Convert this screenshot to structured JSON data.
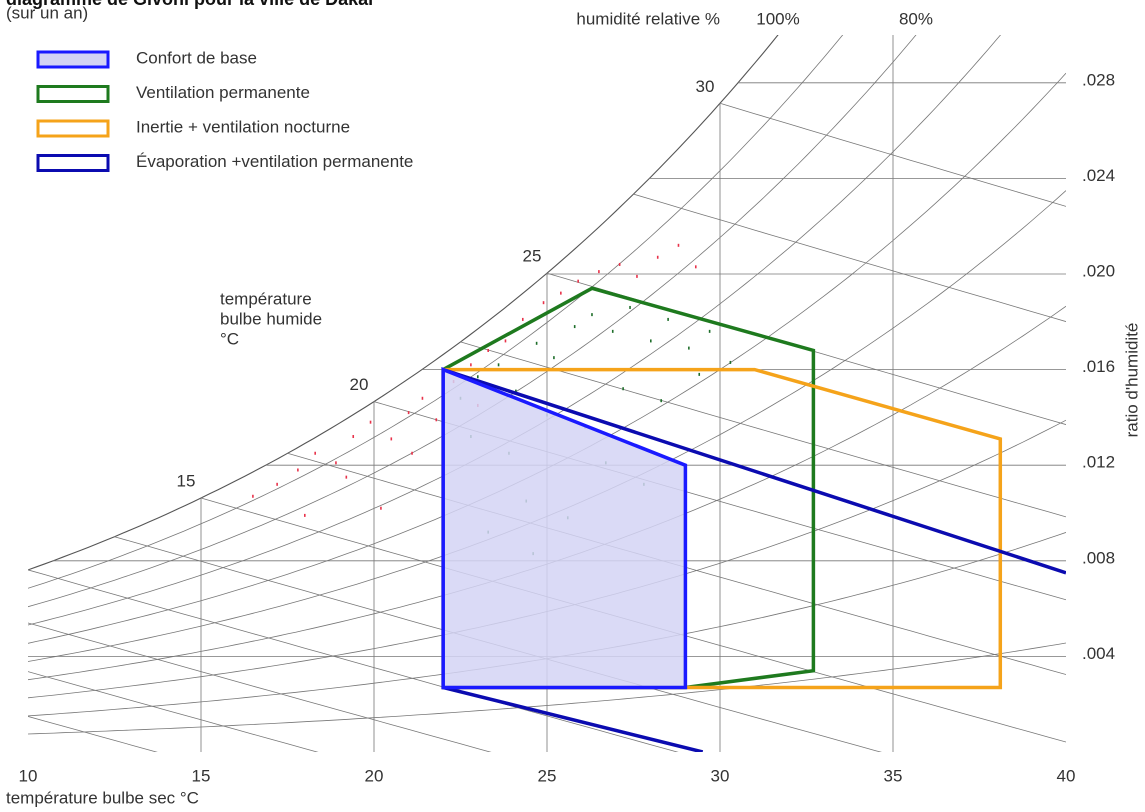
{
  "chart_data": {
    "type": "psychrometric",
    "title": "diagramme de Givoni pour la ville de Dakar",
    "subtitle": "(sur un an)",
    "xlabel": "température bulbe sec °C",
    "ylabel": "ratio d'humidité",
    "xlim": [
      10,
      40
    ],
    "xticks": [
      10,
      15,
      20,
      25,
      30,
      35,
      40
    ],
    "ylim": [
      0,
      0.03
    ],
    "yticks": [
      {
        "value": 0.004,
        "label": ".004"
      },
      {
        "value": 0.008,
        "label": ".008"
      },
      {
        "value": 0.012,
        "label": ".012"
      },
      {
        "value": 0.016,
        "label": ".016"
      },
      {
        "value": 0.02,
        "label": ".020"
      },
      {
        "value": 0.024,
        "label": ".024"
      },
      {
        "value": 0.028,
        "label": ".028"
      }
    ],
    "rh_label": "humidité relative %",
    "rh_curves": [
      10,
      20,
      30,
      40,
      50,
      60,
      70,
      80,
      90,
      100
    ],
    "rh_ticks": [
      {
        "value": 100,
        "label": "100%"
      },
      {
        "value": 80,
        "label": "80%"
      }
    ],
    "wb_label": [
      "température",
      "bulbe humide",
      "°C"
    ],
    "wb_lines": [
      2.5,
      5,
      7.5,
      10,
      12.5,
      15,
      17.5,
      20,
      22.5,
      25,
      27.5,
      30
    ],
    "wb_ticks": [
      15,
      20,
      25,
      30
    ],
    "zones": [
      {
        "name": "Ventilation permanente",
        "color": "#1e7a1e",
        "closed": true,
        "x": [
          22,
          22,
          26.3,
          32.7,
          32.7,
          29
        ],
        "y": [
          0.0027,
          0.016,
          0.0194,
          0.0168,
          0.0034,
          0.0027
        ]
      },
      {
        "name": "Inertie + ventilation nocturne",
        "color": "#f5a31a",
        "closed": true,
        "x": [
          22,
          22,
          31,
          38.1,
          38.1,
          29
        ],
        "y": [
          0.0027,
          0.016,
          0.016,
          0.0131,
          0.0027,
          0.0027
        ]
      },
      {
        "name": "Évaporation +ventilation permanente",
        "color": "#0b0bb0",
        "closed": false,
        "x": [
          40,
          22,
          22,
          29.5
        ],
        "y": [
          0.0075,
          0.016,
          0.0027,
          0
        ]
      },
      {
        "name": "Confort de base",
        "color": "#1a1aff",
        "fill": "#d4d4f4",
        "closed": true,
        "x": [
          22,
          22,
          29,
          29
        ],
        "y": [
          0.0027,
          0.016,
          0.012,
          0.0027
        ]
      }
    ],
    "legend_order": [
      3,
      0,
      1,
      2
    ],
    "scatter": [
      {
        "color": "#e8324a",
        "x": [
          17.2,
          17.8,
          18.3,
          18.9,
          19.4,
          19.9,
          20.5,
          21.0,
          21.4,
          21.8,
          22.3,
          22.8,
          23.3,
          23.8,
          24.3,
          24.9,
          25.4,
          25.9,
          26.5,
          27.1,
          27.6,
          28.2,
          28.8,
          29.3,
          16.5,
          18.0,
          19.2,
          20.2,
          21.1,
          23.0
        ],
        "y": [
          0.0112,
          0.0118,
          0.0125,
          0.0121,
          0.0132,
          0.0138,
          0.0131,
          0.0142,
          0.0148,
          0.0139,
          0.0155,
          0.0162,
          0.0168,
          0.0172,
          0.0181,
          0.0188,
          0.0192,
          0.0197,
          0.0201,
          0.0204,
          0.0199,
          0.0207,
          0.0212,
          0.0203,
          0.0107,
          0.0099,
          0.0115,
          0.0102,
          0.0125,
          0.0145
        ]
      },
      {
        "color": "#1e6e2a",
        "x": [
          22.5,
          23.0,
          23.6,
          24.1,
          24.7,
          25.2,
          25.8,
          26.3,
          26.9,
          27.4,
          28.0,
          28.5,
          29.1,
          29.7,
          30.3,
          22.8,
          23.9,
          25.0,
          26.1,
          27.2,
          28.3,
          29.4,
          24.4,
          25.6,
          26.7,
          27.8,
          23.3,
          24.6
        ],
        "y": [
          0.0148,
          0.0157,
          0.0162,
          0.0151,
          0.0171,
          0.0165,
          0.0178,
          0.0183,
          0.0176,
          0.0186,
          0.0172,
          0.0181,
          0.0169,
          0.0176,
          0.0163,
          0.0132,
          0.0125,
          0.0141,
          0.0136,
          0.0152,
          0.0147,
          0.0158,
          0.0105,
          0.0098,
          0.0121,
          0.0112,
          0.0092,
          0.0083
        ]
      }
    ]
  }
}
